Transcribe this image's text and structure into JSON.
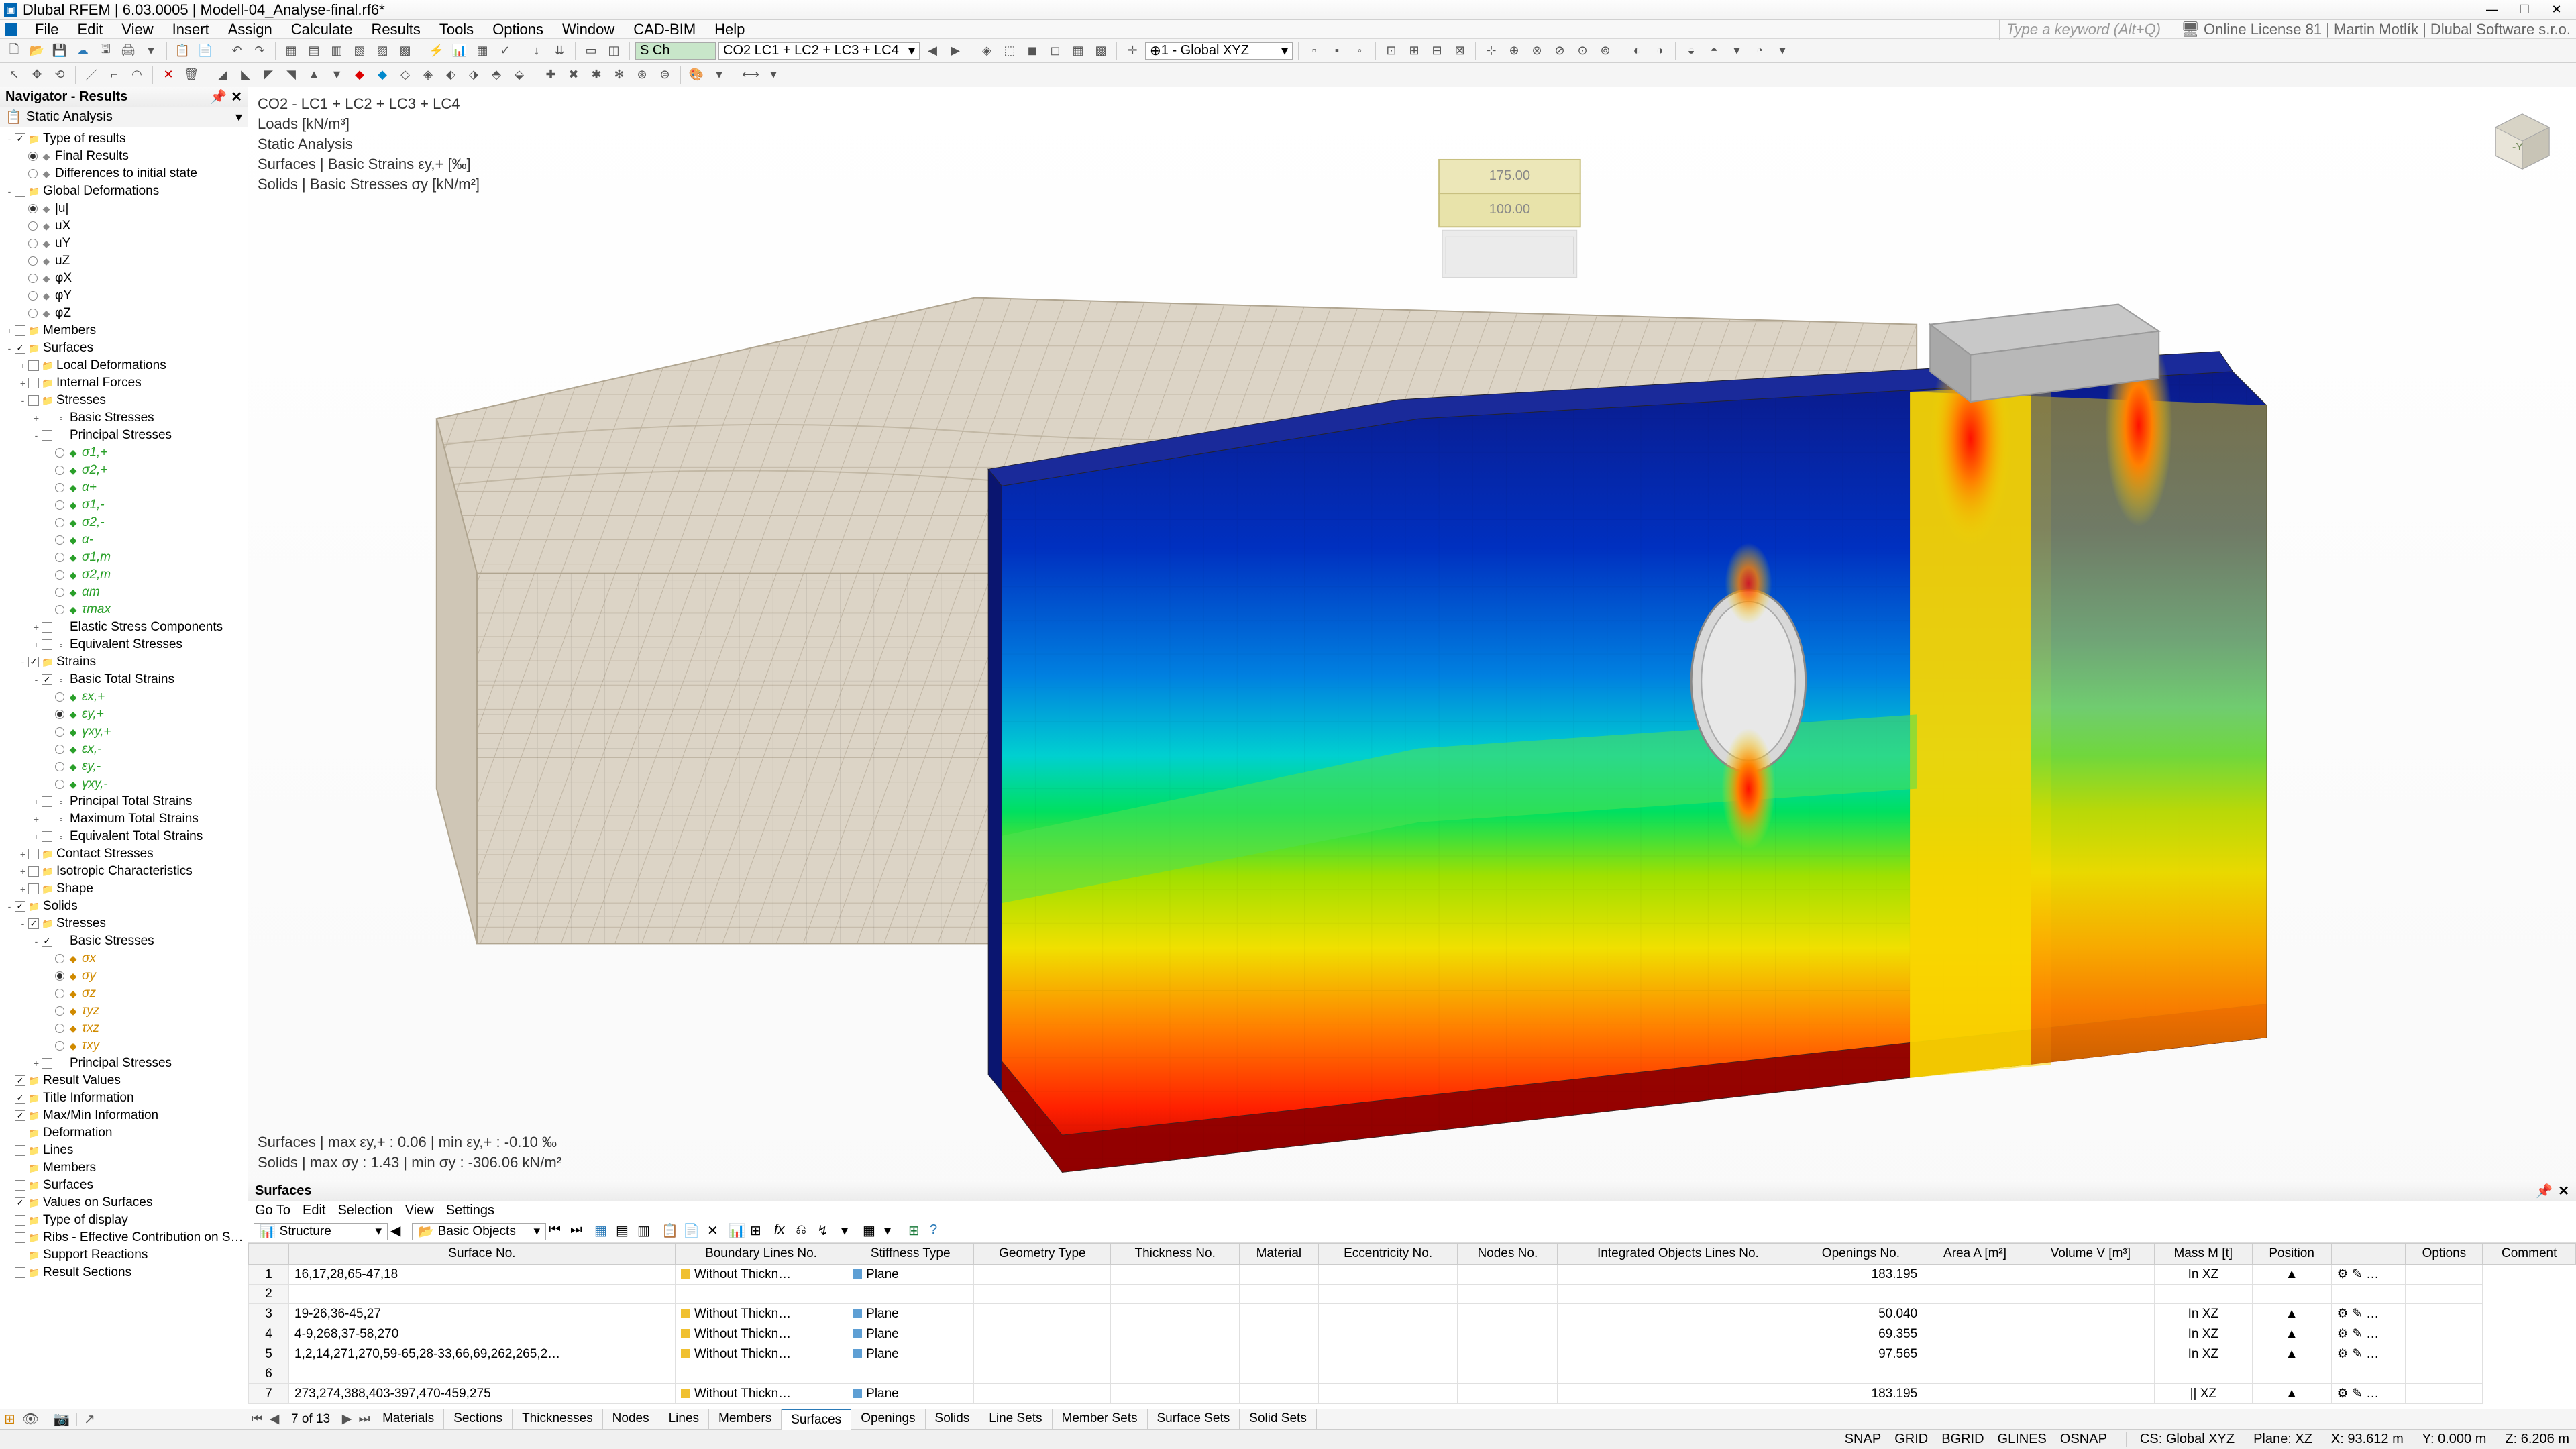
{
  "app": {
    "title": "Dlubal RFEM | 6.03.0005 | Modell-04_Analyse-final.rf6*",
    "license": "Online License 81 | Martin Motlík | Dlubal Software s.r.o."
  },
  "menus": [
    "File",
    "Edit",
    "View",
    "Insert",
    "Assign",
    "Calculate",
    "Results",
    "Tools",
    "Options",
    "Window",
    "CAD-BIM",
    "Help"
  ],
  "search_placeholder": "Type a keyword (Alt+Q)",
  "toolbar1": {
    "combo_green_prefix": "S Ch",
    "combo_loadcase": "CO2   LC1 + LC2 + LC3 + LC4",
    "combo_cs": "1 - Global XYZ"
  },
  "navigator": {
    "title": "Navigator - Results",
    "subtitle": "Static Analysis",
    "tree": [
      {
        "lvl": 0,
        "exp": "-",
        "chk": true,
        "lbl": "Type of results"
      },
      {
        "lvl": 1,
        "radio": true,
        "lbl": "Final Results"
      },
      {
        "lvl": 1,
        "radio": false,
        "lbl": "Differences to initial state"
      },
      {
        "lvl": 0,
        "exp": "-",
        "chk": false,
        "lbl": "Global Deformations"
      },
      {
        "lvl": 1,
        "radio": true,
        "lbl": "|u|"
      },
      {
        "lvl": 1,
        "radio": false,
        "lbl": "uX"
      },
      {
        "lvl": 1,
        "radio": false,
        "lbl": "uY"
      },
      {
        "lvl": 1,
        "radio": false,
        "lbl": "uZ"
      },
      {
        "lvl": 1,
        "radio": false,
        "lbl": "φX"
      },
      {
        "lvl": 1,
        "radio": false,
        "lbl": "φY"
      },
      {
        "lvl": 1,
        "radio": false,
        "lbl": "φZ"
      },
      {
        "lvl": 0,
        "exp": "+",
        "chk": false,
        "lbl": "Members"
      },
      {
        "lvl": 0,
        "exp": "-",
        "chk": true,
        "lbl": "Surfaces"
      },
      {
        "lvl": 1,
        "exp": "+",
        "chk": false,
        "lbl": "Local Deformations"
      },
      {
        "lvl": 1,
        "exp": "+",
        "chk": false,
        "lbl": "Internal Forces"
      },
      {
        "lvl": 1,
        "exp": "-",
        "chk": false,
        "lbl": "Stresses"
      },
      {
        "lvl": 2,
        "exp": "+",
        "chk": false,
        "lbl": "Basic Stresses"
      },
      {
        "lvl": 2,
        "exp": "-",
        "chk": false,
        "lbl": "Principal Stresses"
      },
      {
        "lvl": 3,
        "radio": false,
        "lbl": "σ1,+",
        "color": "#2aa02a"
      },
      {
        "lvl": 3,
        "radio": false,
        "lbl": "σ2,+",
        "color": "#2aa02a"
      },
      {
        "lvl": 3,
        "radio": false,
        "lbl": "α+",
        "color": "#2aa02a"
      },
      {
        "lvl": 3,
        "radio": false,
        "lbl": "σ1,-",
        "color": "#2aa02a"
      },
      {
        "lvl": 3,
        "radio": false,
        "lbl": "σ2,-",
        "color": "#2aa02a"
      },
      {
        "lvl": 3,
        "radio": false,
        "lbl": "α-",
        "color": "#2aa02a"
      },
      {
        "lvl": 3,
        "radio": false,
        "lbl": "σ1,m",
        "color": "#2aa02a"
      },
      {
        "lvl": 3,
        "radio": false,
        "lbl": "σ2,m",
        "color": "#2aa02a"
      },
      {
        "lvl": 3,
        "radio": false,
        "lbl": "αm",
        "color": "#2aa02a"
      },
      {
        "lvl": 3,
        "radio": false,
        "lbl": "τmax",
        "color": "#2aa02a"
      },
      {
        "lvl": 2,
        "exp": "+",
        "chk": false,
        "lbl": "Elastic Stress Components"
      },
      {
        "lvl": 2,
        "exp": "+",
        "chk": false,
        "lbl": "Equivalent Stresses"
      },
      {
        "lvl": 1,
        "exp": "-",
        "chk": true,
        "lbl": "Strains"
      },
      {
        "lvl": 2,
        "exp": "-",
        "chk": true,
        "lbl": "Basic Total Strains"
      },
      {
        "lvl": 3,
        "radio": false,
        "lbl": "εx,+",
        "color": "#2aa02a"
      },
      {
        "lvl": 3,
        "radio": true,
        "lbl": "εy,+",
        "color": "#2aa02a"
      },
      {
        "lvl": 3,
        "radio": false,
        "lbl": "γxy,+",
        "color": "#2aa02a"
      },
      {
        "lvl": 3,
        "radio": false,
        "lbl": "εx,-",
        "color": "#2aa02a"
      },
      {
        "lvl": 3,
        "radio": false,
        "lbl": "εy,-",
        "color": "#2aa02a"
      },
      {
        "lvl": 3,
        "radio": false,
        "lbl": "γxy,-",
        "color": "#2aa02a"
      },
      {
        "lvl": 2,
        "exp": "+",
        "chk": false,
        "lbl": "Principal Total Strains"
      },
      {
        "lvl": 2,
        "exp": "+",
        "chk": false,
        "lbl": "Maximum Total Strains"
      },
      {
        "lvl": 2,
        "exp": "+",
        "chk": false,
        "lbl": "Equivalent Total Strains"
      },
      {
        "lvl": 1,
        "exp": "+",
        "chk": false,
        "lbl": "Contact Stresses"
      },
      {
        "lvl": 1,
        "exp": "+",
        "chk": false,
        "lbl": "Isotropic Characteristics"
      },
      {
        "lvl": 1,
        "exp": "+",
        "chk": false,
        "lbl": "Shape"
      },
      {
        "lvl": 0,
        "exp": "-",
        "chk": true,
        "lbl": "Solids"
      },
      {
        "lvl": 1,
        "exp": "-",
        "chk": true,
        "lbl": "Stresses"
      },
      {
        "lvl": 2,
        "exp": "-",
        "chk": true,
        "lbl": "Basic Stresses"
      },
      {
        "lvl": 3,
        "radio": false,
        "lbl": "σx",
        "color": "#d08a00"
      },
      {
        "lvl": 3,
        "radio": true,
        "lbl": "σy",
        "color": "#d08a00"
      },
      {
        "lvl": 3,
        "radio": false,
        "lbl": "σz",
        "color": "#d08a00"
      },
      {
        "lvl": 3,
        "radio": false,
        "lbl": "τyz",
        "color": "#d08a00"
      },
      {
        "lvl": 3,
        "radio": false,
        "lbl": "τxz",
        "color": "#d08a00"
      },
      {
        "lvl": 3,
        "radio": false,
        "lbl": "τxy",
        "color": "#d08a00"
      },
      {
        "lvl": 2,
        "exp": "+",
        "chk": false,
        "lbl": "Principal Stresses"
      },
      {
        "lvl": 0,
        "chk": true,
        "lbl": "Result Values"
      },
      {
        "lvl": 0,
        "chk": true,
        "lbl": "Title Information"
      },
      {
        "lvl": 0,
        "chk": true,
        "lbl": "Max/Min Information"
      },
      {
        "lvl": 0,
        "chk": false,
        "lbl": "Deformation"
      },
      {
        "lvl": 0,
        "chk": false,
        "lbl": "Lines"
      },
      {
        "lvl": 0,
        "chk": false,
        "lbl": "Members"
      },
      {
        "lvl": 0,
        "chk": false,
        "lbl": "Surfaces"
      },
      {
        "lvl": 0,
        "chk": true,
        "lbl": "Values on Surfaces"
      },
      {
        "lvl": 0,
        "chk": false,
        "lbl": "Type of display"
      },
      {
        "lvl": 0,
        "chk": false,
        "lbl": "Ribs - Effective Contribution on Surface…"
      },
      {
        "lvl": 0,
        "chk": false,
        "lbl": "Support Reactions"
      },
      {
        "lvl": 0,
        "chk": false,
        "lbl": "Result Sections"
      }
    ]
  },
  "viewport": {
    "info_lines": [
      "CO2 - LC1 + LC2 + LC3 + LC4",
      "Loads [kN/m³]",
      "Static Analysis",
      "Surfaces | Basic Strains εy,+ [‰]",
      "Solids | Basic Stresses σy [kN/m²]"
    ],
    "bottom_lines": [
      "Surfaces | max εy,+ : 0.06 | min εy,+ : -0.10 ‰",
      "Solids | max σy : 1.43 | min σy : -306.06 kN/m²"
    ]
  },
  "fea_render": {
    "mesh_color": "#d9d0c3",
    "mesh_edge": "#b8ad9c",
    "background": "#ffffff",
    "solid_block": {
      "gradient_stops": [
        {
          "pct": 0,
          "color": "#0b1a8a"
        },
        {
          "pct": 15,
          "color": "#0044dd"
        },
        {
          "pct": 30,
          "color": "#00b4e0"
        },
        {
          "pct": 45,
          "color": "#00e070"
        },
        {
          "pct": 55,
          "color": "#7ae000"
        },
        {
          "pct": 65,
          "color": "#e0e000"
        },
        {
          "pct": 78,
          "color": "#ff9a00"
        },
        {
          "pct": 90,
          "color": "#ff3000"
        },
        {
          "pct": 100,
          "color": "#c00000"
        }
      ]
    },
    "load_blocks": {
      "fill": "#e8e4a8",
      "edge": "#b8b060",
      "labels": [
        "175.00",
        "100.00"
      ]
    }
  },
  "results_panel": {
    "title": "Surfaces",
    "submenu": [
      "Go To",
      "Edit",
      "Selection",
      "View",
      "Settings"
    ],
    "combo1": "Structure",
    "combo2": "Basic Objects",
    "columns": [
      "Surface No.",
      "Boundary Lines No.",
      "Stiffness Type",
      "Geometry Type",
      "Thickness No.",
      "Material",
      "Eccentricity No.",
      "Nodes No.",
      "Integrated Objects Lines No.",
      "Openings No.",
      "Area A [m²]",
      "Volume V [m³]",
      "Mass M [t]",
      "Position",
      "",
      "Options",
      "Comment"
    ],
    "rows": [
      {
        "n": 1,
        "bl": "16,17,28,65-47,18",
        "st": "Without Thickn…",
        "st_color": "#f0c030",
        "gt": "Plane",
        "gt_color": "#5e9fd4",
        "area": "183.195",
        "pos": "In XZ"
      },
      {
        "n": 2,
        "bl": "",
        "st": "",
        "gt": "",
        "area": "",
        "pos": ""
      },
      {
        "n": 3,
        "bl": "19-26,36-45,27",
        "st": "Without Thickn…",
        "st_color": "#f0c030",
        "gt": "Plane",
        "gt_color": "#5e9fd4",
        "area": "50.040",
        "pos": "In XZ"
      },
      {
        "n": 4,
        "bl": "4-9,268,37-58,270",
        "st": "Without Thickn…",
        "st_color": "#f0c030",
        "gt": "Plane",
        "gt_color": "#5e9fd4",
        "area": "69.355",
        "pos": "In XZ"
      },
      {
        "n": 5,
        "bl": "1,2,14,271,270,59-65,28-33,66,69,262,265,2…",
        "st": "Without Thickn…",
        "st_color": "#f0c030",
        "gt": "Plane",
        "gt_color": "#5e9fd4",
        "area": "97.565",
        "pos": "In XZ"
      },
      {
        "n": 6,
        "bl": "",
        "st": "",
        "gt": "",
        "area": "",
        "pos": ""
      },
      {
        "n": 7,
        "bl": "273,274,388,403-397,470-459,275",
        "st": "Without Thickn…",
        "st_color": "#f0c030",
        "gt": "Plane",
        "gt_color": "#5e9fd4",
        "area": "183.195",
        "pos": "|| XZ"
      }
    ],
    "page_info": "7 of 13",
    "tabs": [
      "Materials",
      "Sections",
      "Thicknesses",
      "Nodes",
      "Lines",
      "Members",
      "Surfaces",
      "Openings",
      "Solids",
      "Line Sets",
      "Member Sets",
      "Surface Sets",
      "Solid Sets"
    ],
    "active_tab": "Surfaces"
  },
  "statusbar": {
    "snaps": [
      "SNAP",
      "GRID",
      "BGRID",
      "GLINES",
      "OSNAP"
    ],
    "cs": "CS: Global XYZ",
    "plane": "Plane: XZ",
    "x": "X: 93.612 m",
    "y": "Y: 0.000 m",
    "z": "Z: 6.206 m"
  }
}
